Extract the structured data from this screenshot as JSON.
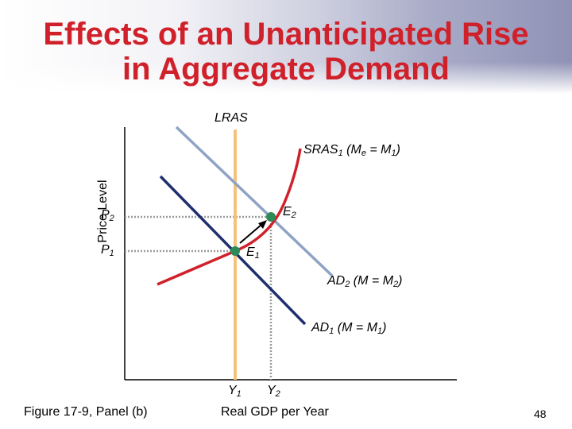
{
  "slide": {
    "title_line1": "Effects of an Unanticipated Rise",
    "title_line2": "in Aggregate Demand",
    "figure_caption": "Figure 17-9, Panel (b)",
    "page_number": "48"
  },
  "diagram": {
    "y_axis_label": "Price Level",
    "x_axis_label": "Real GDP per Year",
    "lras": {
      "label": "LRAS",
      "color": "#f6c27a"
    },
    "sras": {
      "label_main": "SRAS",
      "label_sub": "1",
      "label_paren": "(M",
      "label_paren_sub": "e",
      "label_eq": " = M",
      "label_eq_sub": "1",
      "label_close": ")",
      "color": "#d0212b"
    },
    "ad2": {
      "label_main": "AD",
      "label_sub": "2",
      "label_paren": " (M = M",
      "label_paren_sub": "2",
      "label_close": ")",
      "color": "#8fa3c5"
    },
    "ad1": {
      "label_main": "AD",
      "label_sub": "1",
      "label_paren": " (M = M",
      "label_paren_sub": "1",
      "label_close": ")",
      "color": "#1f2f6e"
    },
    "p2": {
      "main": "P",
      "sub": "2"
    },
    "p1": {
      "main": "P",
      "sub": "1"
    },
    "e1": {
      "main": "E",
      "sub": "1"
    },
    "e2": {
      "main": "E",
      "sub": "2"
    },
    "y1": {
      "main": "Y",
      "sub": "1"
    },
    "y2": {
      "main": "Y",
      "sub": "2"
    },
    "point_color": "#2e8b57",
    "guide_color": "#9a9a9a"
  }
}
